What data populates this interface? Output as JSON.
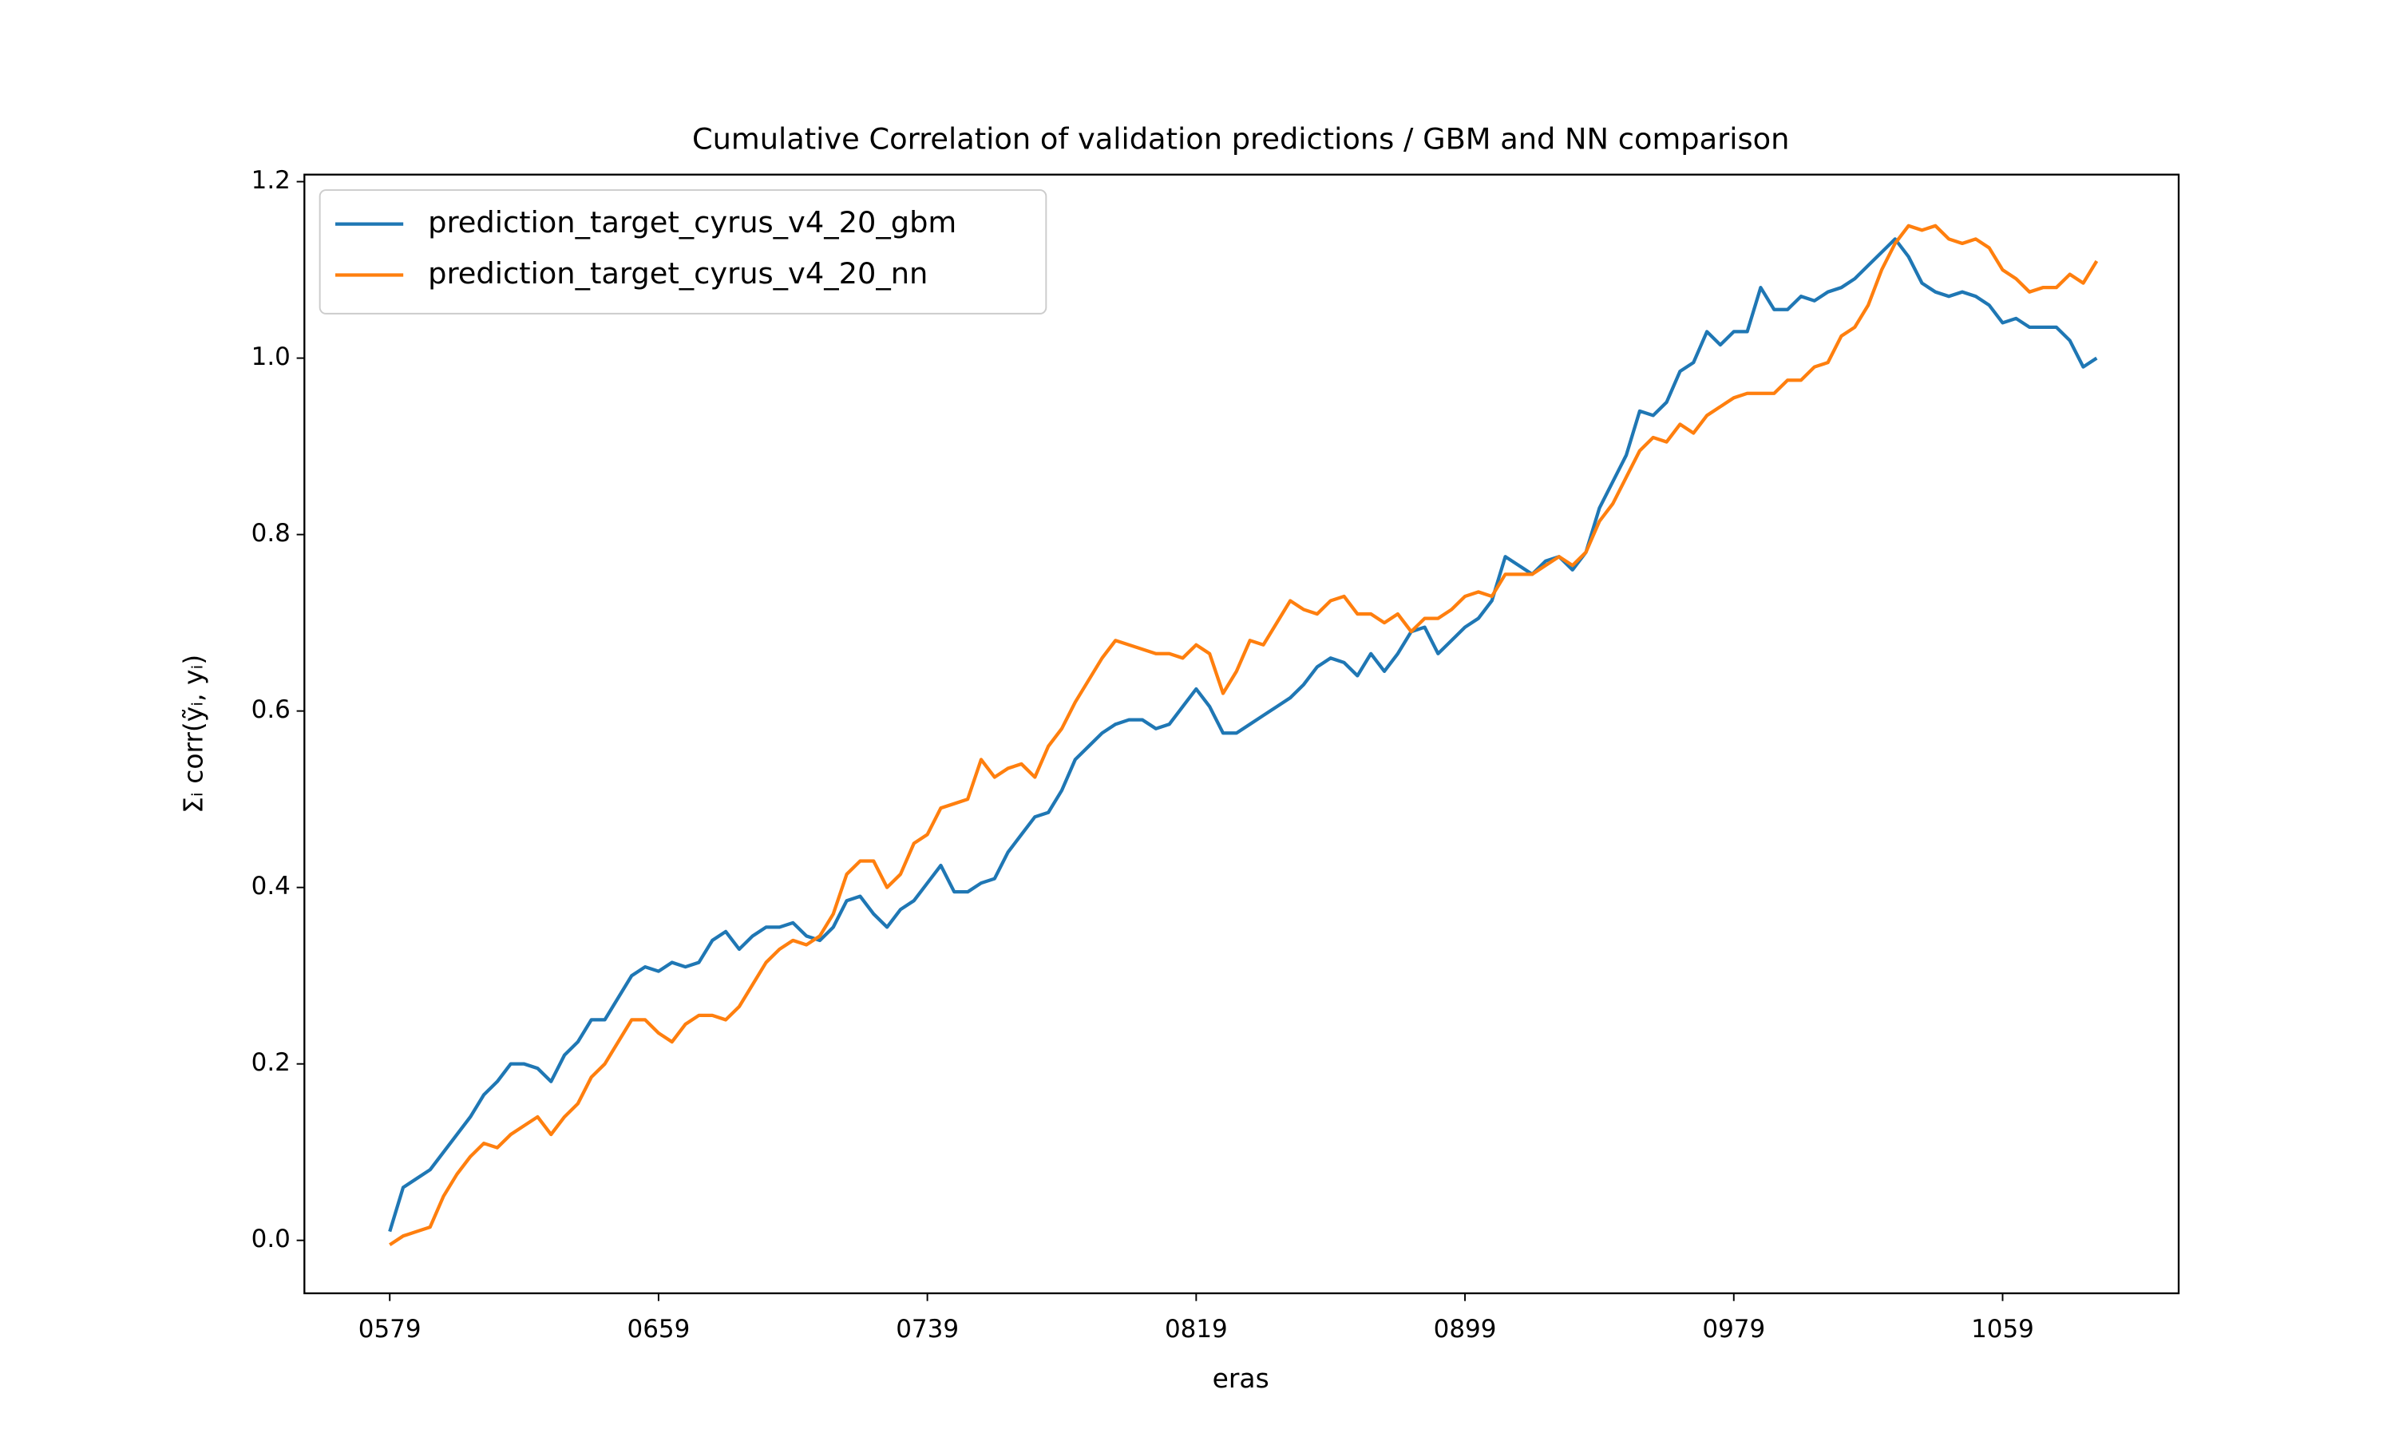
{
  "chart_data": {
    "type": "line",
    "title": "Cumulative Correlation of validation predictions / GBM and NN comparison",
    "xlabel": "eras",
    "ylabel": "Σᵢ corr(ỹᵢ, yᵢ)",
    "x": [
      579,
      583,
      587,
      591,
      595,
      599,
      603,
      607,
      611,
      615,
      619,
      623,
      627,
      631,
      635,
      639,
      643,
      647,
      651,
      655,
      659,
      663,
      667,
      671,
      675,
      679,
      683,
      687,
      691,
      695,
      699,
      703,
      707,
      711,
      715,
      719,
      723,
      727,
      731,
      735,
      739,
      743,
      747,
      751,
      755,
      759,
      763,
      767,
      771,
      775,
      779,
      783,
      787,
      791,
      795,
      799,
      803,
      807,
      811,
      815,
      819,
      823,
      827,
      831,
      835,
      839,
      843,
      847,
      851,
      855,
      859,
      863,
      867,
      871,
      875,
      879,
      883,
      887,
      891,
      895,
      899,
      903,
      907,
      911,
      915,
      919,
      923,
      927,
      931,
      935,
      939,
      943,
      947,
      951,
      955,
      959,
      963,
      967,
      971,
      975,
      979,
      983,
      987,
      991,
      995,
      999,
      1003,
      1007,
      1011,
      1015,
      1019,
      1023,
      1027,
      1031,
      1035,
      1039,
      1043,
      1047,
      1051,
      1055,
      1059,
      1063,
      1067,
      1071,
      1075,
      1079,
      1083,
      1087
    ],
    "series": [
      {
        "name": "prediction_target_cyrus_v4_20_gbm",
        "color": "#1f77b4",
        "values": [
          0.01,
          0.06,
          0.07,
          0.08,
          0.1,
          0.12,
          0.14,
          0.165,
          0.18,
          0.2,
          0.2,
          0.195,
          0.18,
          0.21,
          0.225,
          0.25,
          0.25,
          0.275,
          0.3,
          0.31,
          0.305,
          0.315,
          0.31,
          0.315,
          0.34,
          0.35,
          0.33,
          0.345,
          0.355,
          0.355,
          0.36,
          0.345,
          0.34,
          0.355,
          0.385,
          0.39,
          0.37,
          0.355,
          0.375,
          0.385,
          0.405,
          0.425,
          0.395,
          0.395,
          0.405,
          0.41,
          0.44,
          0.46,
          0.48,
          0.485,
          0.51,
          0.545,
          0.56,
          0.575,
          0.585,
          0.59,
          0.59,
          0.58,
          0.585,
          0.605,
          0.625,
          0.605,
          0.575,
          0.575,
          0.585,
          0.595,
          0.605,
          0.615,
          0.63,
          0.65,
          0.66,
          0.655,
          0.64,
          0.665,
          0.645,
          0.665,
          0.69,
          0.695,
          0.665,
          0.68,
          0.695,
          0.705,
          0.725,
          0.775,
          0.765,
          0.755,
          0.77,
          0.775,
          0.76,
          0.78,
          0.83,
          0.86,
          0.89,
          0.94,
          0.935,
          0.95,
          0.985,
          0.995,
          1.03,
          1.015,
          1.03,
          1.03,
          1.08,
          1.055,
          1.055,
          1.07,
          1.065,
          1.075,
          1.08,
          1.09,
          1.105,
          1.12,
          1.135,
          1.115,
          1.085,
          1.075,
          1.07,
          1.075,
          1.07,
          1.06,
          1.04,
          1.045,
          1.035,
          1.035,
          1.035,
          1.02,
          0.99,
          1.0
        ]
      },
      {
        "name": "prediction_target_cyrus_v4_20_nn",
        "color": "#ff7f0e",
        "values": [
          -0.005,
          0.005,
          0.01,
          0.015,
          0.05,
          0.075,
          0.095,
          0.11,
          0.105,
          0.12,
          0.13,
          0.14,
          0.12,
          0.14,
          0.155,
          0.185,
          0.2,
          0.225,
          0.25,
          0.25,
          0.235,
          0.225,
          0.245,
          0.255,
          0.255,
          0.25,
          0.265,
          0.29,
          0.315,
          0.33,
          0.34,
          0.335,
          0.345,
          0.37,
          0.415,
          0.43,
          0.43,
          0.4,
          0.415,
          0.45,
          0.46,
          0.49,
          0.495,
          0.5,
          0.545,
          0.525,
          0.535,
          0.54,
          0.525,
          0.56,
          0.58,
          0.61,
          0.635,
          0.66,
          0.68,
          0.675,
          0.67,
          0.665,
          0.665,
          0.66,
          0.675,
          0.665,
          0.62,
          0.645,
          0.68,
          0.675,
          0.7,
          0.725,
          0.715,
          0.71,
          0.725,
          0.73,
          0.71,
          0.71,
          0.7,
          0.71,
          0.69,
          0.705,
          0.705,
          0.715,
          0.73,
          0.735,
          0.73,
          0.755,
          0.755,
          0.755,
          0.765,
          0.775,
          0.765,
          0.78,
          0.815,
          0.835,
          0.865,
          0.895,
          0.91,
          0.905,
          0.925,
          0.915,
          0.935,
          0.945,
          0.955,
          0.96,
          0.96,
          0.96,
          0.975,
          0.975,
          0.99,
          0.995,
          1.025,
          1.035,
          1.06,
          1.1,
          1.13,
          1.15,
          1.145,
          1.15,
          1.135,
          1.13,
          1.135,
          1.125,
          1.1,
          1.09,
          1.075,
          1.08,
          1.08,
          1.095,
          1.085,
          1.11
        ]
      }
    ],
    "xlim": [
      553.6,
      1111.4
    ],
    "ylim": [
      -0.06,
      1.208
    ],
    "xticks": [
      {
        "value": 579,
        "label": "0579"
      },
      {
        "value": 659,
        "label": "0659"
      },
      {
        "value": 739,
        "label": "0739"
      },
      {
        "value": 819,
        "label": "0819"
      },
      {
        "value": 899,
        "label": "0899"
      },
      {
        "value": 979,
        "label": "0979"
      },
      {
        "value": 1059,
        "label": "1059"
      }
    ],
    "yticks": [
      {
        "value": 0,
        "label": "0.0"
      },
      {
        "value": 0.2,
        "label": "0.2"
      },
      {
        "value": 0.4,
        "label": "0.4"
      },
      {
        "value": 0.6,
        "label": "0.6"
      },
      {
        "value": 0.8,
        "label": "0.8"
      },
      {
        "value": 1.0,
        "label": "1.0"
      },
      {
        "value": 1.2,
        "label": "1.2"
      }
    ],
    "grid": false,
    "legend": "upper left"
  }
}
